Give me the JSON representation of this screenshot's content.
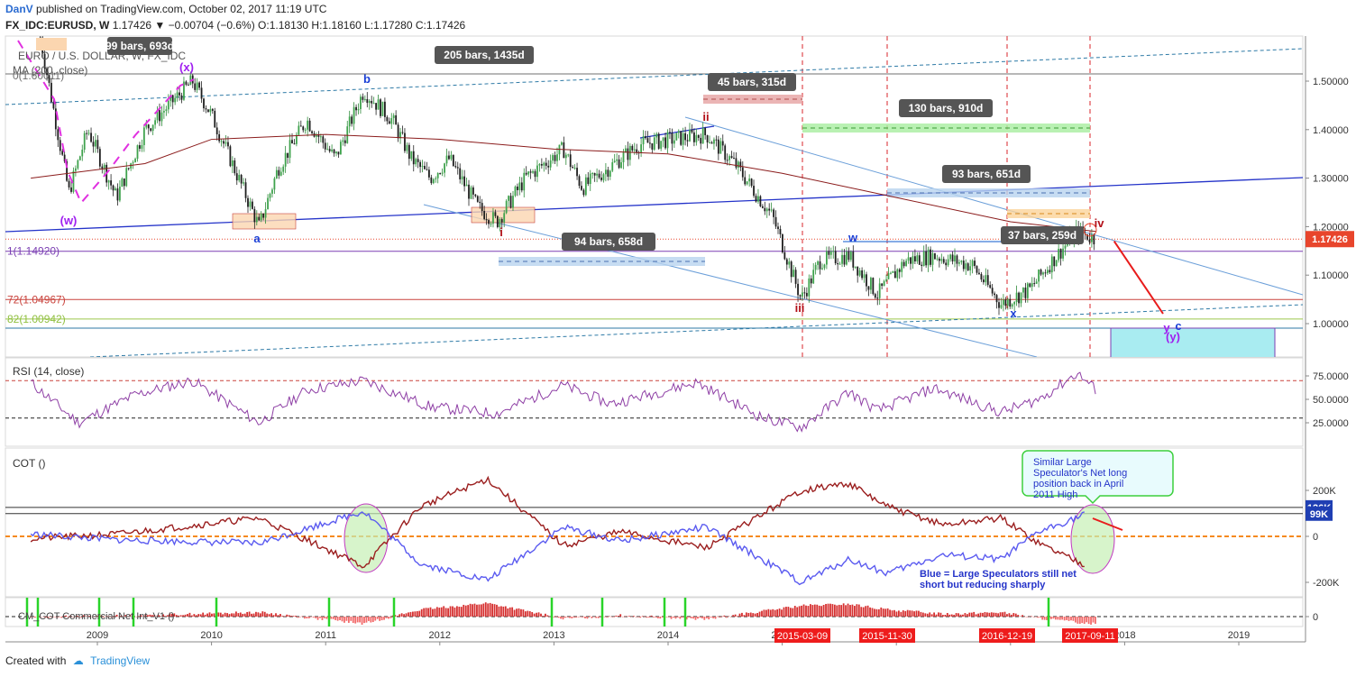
{
  "header": {
    "user": "DanV",
    "published_text": "published on TradingView.com, October 02, 2017 11:19 UTC",
    "symbol": "FX_IDC:EURUSD, W",
    "price": "1.17426",
    "change": "▼ −0.00704 (−0.6%)",
    "ohlc": "O:1.18130 H:1.18160 L:1.17280 C:1.17426"
  },
  "overlay_labels": {
    "series_name": "EURO / U.S. DOLLAR, W, FX_IDC",
    "ma_label": "MA (200, close)",
    "fib0": "0(1.60011)"
  },
  "price_axis": {
    "ticks": [
      "1.50000",
      "1.40000",
      "1.30000",
      "1.20000",
      "1.10000",
      "1.00000"
    ],
    "last_price": "1.17426",
    "last_price_color": "#e8452c"
  },
  "fib_levels": [
    {
      "label": "1(1.14920)",
      "value": 1.1492,
      "color": "#7b3fb3"
    },
    {
      "label": "72(1.04967)",
      "value": 1.04967,
      "color": "#c9423b"
    },
    {
      "label": "82(1.00942)",
      "value": 1.00942,
      "color": "#8fbf3f"
    }
  ],
  "measure_labels": [
    {
      "text": "99 bars, 693d"
    },
    {
      "text": "205 bars, 1435d"
    },
    {
      "text": "45 bars, 315d"
    },
    {
      "text": "130 bars, 910d"
    },
    {
      "text": "93 bars, 651d"
    },
    {
      "text": "94 bars, 658d"
    },
    {
      "text": "37 bars, 259d"
    }
  ],
  "wave_labels": [
    {
      "text": "(x)",
      "color": "#a020f0"
    },
    {
      "text": "b",
      "color": "#1a3fd6"
    },
    {
      "text": "ii",
      "color": "#b3111a"
    },
    {
      "text": "(w)",
      "color": "#a020f0"
    },
    {
      "text": "a",
      "color": "#1a3fd6"
    },
    {
      "text": "i",
      "color": "#b3111a"
    },
    {
      "text": "iii",
      "color": "#b3111a"
    },
    {
      "text": "w",
      "color": "#1a3fd6"
    },
    {
      "text": "x",
      "color": "#1a3fd6"
    },
    {
      "text": "iv",
      "color": "#b3111a"
    },
    {
      "text": "y",
      "color": "#a020f0"
    },
    {
      "text": "c",
      "color": "#1a3fd6"
    },
    {
      "text": "(y)",
      "color": "#a020f0"
    }
  ],
  "rsi": {
    "label": "RSI (14, close)",
    "ticks": [
      "75.0000",
      "50.0000",
      "25.0000"
    ]
  },
  "cot": {
    "label": "COT ()",
    "ticks": [
      "200K",
      "0",
      "-200K"
    ],
    "badges": [
      "126K",
      "99K"
    ],
    "callout_top": "Similar Large Speculator's Net long position back in April 2011 High",
    "callout_bottom": "Blue = Large Speculators still net short but reducing sharply"
  },
  "cm": {
    "label": "CM_COT Commercial Net Int_V1 ()",
    "ticks": [
      "0"
    ]
  },
  "time_axis": {
    "years": [
      "2009",
      "2010",
      "2011",
      "2012",
      "2013",
      "2014",
      "2015",
      "2016",
      "2017",
      "2018",
      "2019"
    ],
    "date_markers": [
      "2015-03-09",
      "2015-11-30",
      "2016-12-19",
      "2017-09-11"
    ]
  },
  "chart_data": {
    "type": "candlestick",
    "title": "",
    "x_range": [
      "2008-06",
      "2019-07"
    ],
    "y_range": [
      0.94,
      1.6
    ],
    "x_year_ticks": [
      2009,
      2010,
      2011,
      2012,
      2013,
      2014,
      2015,
      2016,
      2017,
      2018,
      2019
    ],
    "price_path": [
      {
        "t": "2008-07",
        "v": 1.59
      },
      {
        "t": "2008-10",
        "v": 1.27
      },
      {
        "t": "2008-12",
        "v": 1.4
      },
      {
        "t": "2009-03",
        "v": 1.26
      },
      {
        "t": "2009-06",
        "v": 1.4
      },
      {
        "t": "2009-11",
        "v": 1.5
      },
      {
        "t": "2010-01",
        "v": 1.43
      },
      {
        "t": "2010-06",
        "v": 1.2
      },
      {
        "t": "2010-08",
        "v": 1.32
      },
      {
        "t": "2010-11",
        "v": 1.42
      },
      {
        "t": "2011-02",
        "v": 1.34
      },
      {
        "t": "2011-05",
        "v": 1.48
      },
      {
        "t": "2011-08",
        "v": 1.42
      },
      {
        "t": "2011-10",
        "v": 1.34
      },
      {
        "t": "2011-12",
        "v": 1.3
      },
      {
        "t": "2012-02",
        "v": 1.34
      },
      {
        "t": "2012-05",
        "v": 1.24
      },
      {
        "t": "2012-07",
        "v": 1.21
      },
      {
        "t": "2012-10",
        "v": 1.3
      },
      {
        "t": "2013-02",
        "v": 1.36
      },
      {
        "t": "2013-04",
        "v": 1.28
      },
      {
        "t": "2013-10",
        "v": 1.37
      },
      {
        "t": "2014-05",
        "v": 1.39
      },
      {
        "t": "2014-08",
        "v": 1.33
      },
      {
        "t": "2014-12",
        "v": 1.22
      },
      {
        "t": "2015-03",
        "v": 1.05
      },
      {
        "t": "2015-05",
        "v": 1.13
      },
      {
        "t": "2015-08",
        "v": 1.14
      },
      {
        "t": "2015-11",
        "v": 1.06
      },
      {
        "t": "2016-02",
        "v": 1.13
      },
      {
        "t": "2016-05",
        "v": 1.14
      },
      {
        "t": "2016-09",
        "v": 1.12
      },
      {
        "t": "2016-12",
        "v": 1.04
      },
      {
        "t": "2017-03",
        "v": 1.07
      },
      {
        "t": "2017-05",
        "v": 1.12
      },
      {
        "t": "2017-08",
        "v": 1.19
      },
      {
        "t": "2017-10",
        "v": 1.174
      }
    ],
    "ma200_path": [
      {
        "t": "2008-06",
        "v": 1.3
      },
      {
        "t": "2009-06",
        "v": 1.33
      },
      {
        "t": "2010-01",
        "v": 1.38
      },
      {
        "t": "2011-01",
        "v": 1.39
      },
      {
        "t": "2012-01",
        "v": 1.38
      },
      {
        "t": "2013-01",
        "v": 1.36
      },
      {
        "t": "2014-01",
        "v": 1.35
      },
      {
        "t": "2015-01",
        "v": 1.31
      },
      {
        "t": "2016-01",
        "v": 1.26
      },
      {
        "t": "2017-01",
        "v": 1.21
      },
      {
        "t": "2017-10",
        "v": 1.19
      }
    ],
    "projection": [
      {
        "t": "2017-10",
        "v": 1.17
      },
      {
        "t": "2018-06",
        "v": 1.02
      }
    ],
    "rsi_path": [
      {
        "t": "2008-06",
        "v": 68
      },
      {
        "t": "2008-11",
        "v": 25
      },
      {
        "t": "2009-05",
        "v": 55
      },
      {
        "t": "2009-11",
        "v": 70
      },
      {
        "t": "2010-06",
        "v": 25
      },
      {
        "t": "2010-11",
        "v": 60
      },
      {
        "t": "2011-05",
        "v": 70
      },
      {
        "t": "2011-12",
        "v": 42
      },
      {
        "t": "2012-07",
        "v": 35
      },
      {
        "t": "2013-02",
        "v": 65
      },
      {
        "t": "2013-07",
        "v": 45
      },
      {
        "t": "2014-04",
        "v": 68
      },
      {
        "t": "2014-11",
        "v": 30
      },
      {
        "t": "2015-03",
        "v": 20
      },
      {
        "t": "2015-08",
        "v": 58
      },
      {
        "t": "2015-11",
        "v": 38
      },
      {
        "t": "2016-05",
        "v": 62
      },
      {
        "t": "2016-12",
        "v": 36
      },
      {
        "t": "2017-04",
        "v": 50
      },
      {
        "t": "2017-08",
        "v": 78
      },
      {
        "t": "2017-10",
        "v": 60
      }
    ],
    "cot_large_spec_path": [
      {
        "t": "2008-06",
        "v": 10
      },
      {
        "t": "2009-03",
        "v": -15
      },
      {
        "t": "2010-06",
        "v": -30
      },
      {
        "t": "2011-05",
        "v": 110
      },
      {
        "t": "2011-11",
        "v": -120
      },
      {
        "t": "2012-06",
        "v": -190
      },
      {
        "t": "2013-02",
        "v": 40
      },
      {
        "t": "2013-08",
        "v": -20
      },
      {
        "t": "2014-05",
        "v": 40
      },
      {
        "t": "2015-03",
        "v": -200
      },
      {
        "t": "2015-08",
        "v": -100
      },
      {
        "t": "2015-12",
        "v": -160
      },
      {
        "t": "2016-06",
        "v": -80
      },
      {
        "t": "2016-12",
        "v": -100
      },
      {
        "t": "2017-04",
        "v": 20
      },
      {
        "t": "2017-09",
        "v": 99
      }
    ],
    "cot_commercial_path": [
      {
        "t": "2008-06",
        "v": -10
      },
      {
        "t": "2009-03",
        "v": 10
      },
      {
        "t": "2010-06",
        "v": 80
      },
      {
        "t": "2011-05",
        "v": -130
      },
      {
        "t": "2011-11",
        "v": 130
      },
      {
        "t": "2012-06",
        "v": 250
      },
      {
        "t": "2013-02",
        "v": -40
      },
      {
        "t": "2013-08",
        "v": 20
      },
      {
        "t": "2014-05",
        "v": -50
      },
      {
        "t": "2015-03",
        "v": 200
      },
      {
        "t": "2015-08",
        "v": 230
      },
      {
        "t": "2015-12",
        "v": 130
      },
      {
        "t": "2016-06",
        "v": 50
      },
      {
        "t": "2016-12",
        "v": 80
      },
      {
        "t": "2017-04",
        "v": -30
      },
      {
        "t": "2017-09",
        "v": -126
      }
    ],
    "cot_range": [
      -260,
      300
    ]
  }
}
